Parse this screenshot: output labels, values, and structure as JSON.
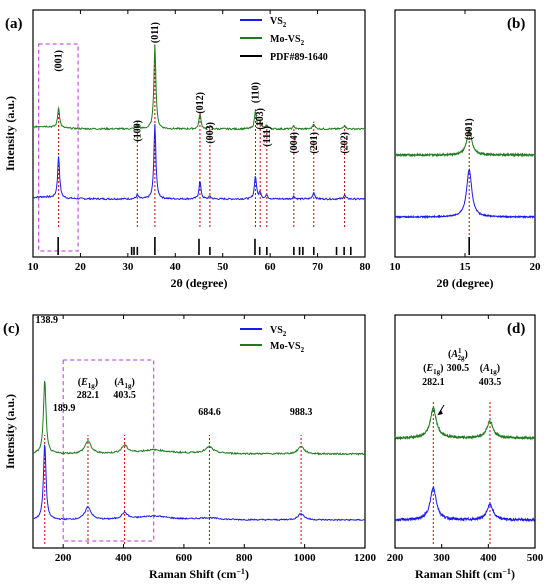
{
  "colors": {
    "vs2": "#1a1aee",
    "mo_vs2": "#1f7a1f",
    "pdf": "#000000",
    "ref": "#cc0000",
    "box": "#bb33dd"
  },
  "panel_labels": {
    "a": "(a)",
    "b": "(b)",
    "c": "(c)",
    "d": "(d)"
  },
  "legend_a": {
    "vs2": "VS",
    "vs2_sub": "2",
    "mo": "Mo-VS",
    "mo_sub": "2",
    "pdf": "PDF#89-1640"
  },
  "legend_c": {
    "vs2": "VS",
    "vs2_sub": "2",
    "mo": "Mo-VS",
    "mo_sub": "2"
  },
  "axis_labels": {
    "xrd_x": "2θ (degree)",
    "xrd_y": "Intensity (a.u.)",
    "raman_x_main": "Raman Shift (cm",
    "raman_x_sup": "−1",
    "raman_x_end": ")",
    "raman_y": "Intensity (a.u.)"
  },
  "chart_data": [
    {
      "panel": "a",
      "type": "line",
      "xlabel": "2θ (degree)",
      "ylabel": "Intensity (a.u.)",
      "xlim": [
        10,
        80
      ],
      "xticks": [
        10,
        20,
        30,
        40,
        50,
        60,
        70,
        80
      ],
      "series": [
        {
          "name": "VS2",
          "baseline": 0.0
        },
        {
          "name": "Mo-VS2",
          "baseline": 0.33
        }
      ],
      "peaks": [
        {
          "x": 15.4,
          "label": "(001)",
          "h_vs2": 0.31,
          "h_mo": 0.15
        },
        {
          "x": 32.0,
          "label": "(100)",
          "h_vs2": 0.03,
          "h_mo": 0.035
        },
        {
          "x": 35.7,
          "label": "(011)",
          "h_vs2": 0.55,
          "h_mo": 0.62
        },
        {
          "x": 45.2,
          "label": "(012)",
          "h_vs2": 0.13,
          "h_mo": 0.11
        },
        {
          "x": 47.3,
          "label": "(003)",
          "h_vs2": 0.02,
          "h_mo": 0.02
        },
        {
          "x": 56.9,
          "label": "(110)",
          "h_vs2": 0.17,
          "h_mo": 0.13
        },
        {
          "x": 57.9,
          "label": "(103)",
          "h_vs2": 0.05,
          "h_mo": 0.05
        },
        {
          "x": 59.3,
          "label": "(111)",
          "h_vs2": 0.03,
          "h_mo": 0.03
        },
        {
          "x": 65.0,
          "label": "(004)",
          "h_vs2": 0.02,
          "h_mo": 0.02
        },
        {
          "x": 69.2,
          "label": "(201)",
          "h_vs2": 0.05,
          "h_mo": 0.04
        },
        {
          "x": 75.7,
          "label": "(202)",
          "h_vs2": 0.03,
          "h_mo": 0.03
        }
      ],
      "pdf_lines": [
        {
          "x": 15.3,
          "h": 1.0
        },
        {
          "x": 30.8,
          "h": 0.45
        },
        {
          "x": 31.3,
          "h": 0.45
        },
        {
          "x": 32.0,
          "h": 0.45
        },
        {
          "x": 35.7,
          "h": 1.0
        },
        {
          "x": 45.0,
          "h": 0.9
        },
        {
          "x": 47.3,
          "h": 0.45
        },
        {
          "x": 56.8,
          "h": 0.9
        },
        {
          "x": 57.8,
          "h": 0.45
        },
        {
          "x": 59.3,
          "h": 0.45
        },
        {
          "x": 65.0,
          "h": 0.45
        },
        {
          "x": 66.2,
          "h": 0.45
        },
        {
          "x": 66.9,
          "h": 0.45
        },
        {
          "x": 69.2,
          "h": 0.45
        },
        {
          "x": 74.0,
          "h": 0.45
        },
        {
          "x": 75.6,
          "h": 0.45
        },
        {
          "x": 77.0,
          "h": 0.45
        }
      ]
    },
    {
      "panel": "b",
      "type": "line",
      "xlabel": "2θ (degree)",
      "xlim": [
        10,
        20
      ],
      "xticks": [
        10,
        15,
        20
      ],
      "series": [
        {
          "name": "VS2",
          "baseline": 0.0
        },
        {
          "name": "Mo-VS2",
          "baseline": 0.33
        }
      ],
      "peaks": [
        {
          "x": 15.3,
          "label": "(001)",
          "h_vs2": 0.35,
          "h_mo": 0.18
        }
      ]
    },
    {
      "panel": "c",
      "type": "line",
      "xlabel": "Raman Shift (cm−1)",
      "ylabel": "Intensity (a.u.)",
      "xlim": [
        100,
        1200
      ],
      "xticks": [
        200,
        400,
        600,
        800,
        1000,
        1200
      ],
      "series": [
        {
          "name": "VS2",
          "baseline": 0.0
        },
        {
          "name": "Mo-VS2",
          "baseline": 0.33
        }
      ],
      "peaks": [
        {
          "x": 138.9,
          "label": "138.9",
          "h_vs2": 0.6,
          "h_mo": 0.58
        },
        {
          "x": 189.9,
          "label": "189.9",
          "h_vs2": 0.0,
          "h_mo": 0.0
        },
        {
          "x": 282.1,
          "label": "282.1",
          "mode": "E1g",
          "h_vs2": 0.1,
          "h_mo": 0.1
        },
        {
          "x": 403.5,
          "label": "403.5",
          "mode": "A1g",
          "h_vs2": 0.05,
          "h_mo": 0.06
        },
        {
          "x": 684.6,
          "label": "684.6",
          "h_vs2": 0.0,
          "h_mo": 0.04
        },
        {
          "x": 988.3,
          "label": "988.3",
          "h_vs2": 0.05,
          "h_mo": 0.06
        }
      ],
      "mode_labels": [
        {
          "x": 282.1,
          "sym": "E",
          "sub": "1g"
        },
        {
          "x": 403.5,
          "sym": "A",
          "sub": "1g"
        }
      ]
    },
    {
      "panel": "d",
      "type": "line",
      "xlabel": "Raman Shift (cm−1)",
      "xlim": [
        200,
        500
      ],
      "xticks": [
        200,
        300,
        400,
        500
      ],
      "series": [
        {
          "name": "VS2",
          "baseline": 0.0
        },
        {
          "name": "Mo-VS2",
          "baseline": 0.33
        }
      ],
      "peaks": [
        {
          "x": 282.1,
          "label": "282.1",
          "mode": "E1g",
          "h_vs2": 0.25,
          "h_mo": 0.23
        },
        {
          "x": 300.5,
          "label": "300.5",
          "mode": "A12g",
          "h_vs2": 0.0,
          "h_mo": 0.0
        },
        {
          "x": 403.5,
          "label": "403.5",
          "mode": "A1g",
          "h_vs2": 0.12,
          "h_mo": 0.13
        }
      ],
      "mode_labels": [
        {
          "x": 282.1,
          "sym": "E",
          "sub": "1g",
          "sup": ""
        },
        {
          "x": 300.5,
          "sym": "A",
          "sub": "2g",
          "sup": "1"
        },
        {
          "x": 403.5,
          "sym": "A",
          "sub": "1g",
          "sup": ""
        }
      ]
    }
  ]
}
